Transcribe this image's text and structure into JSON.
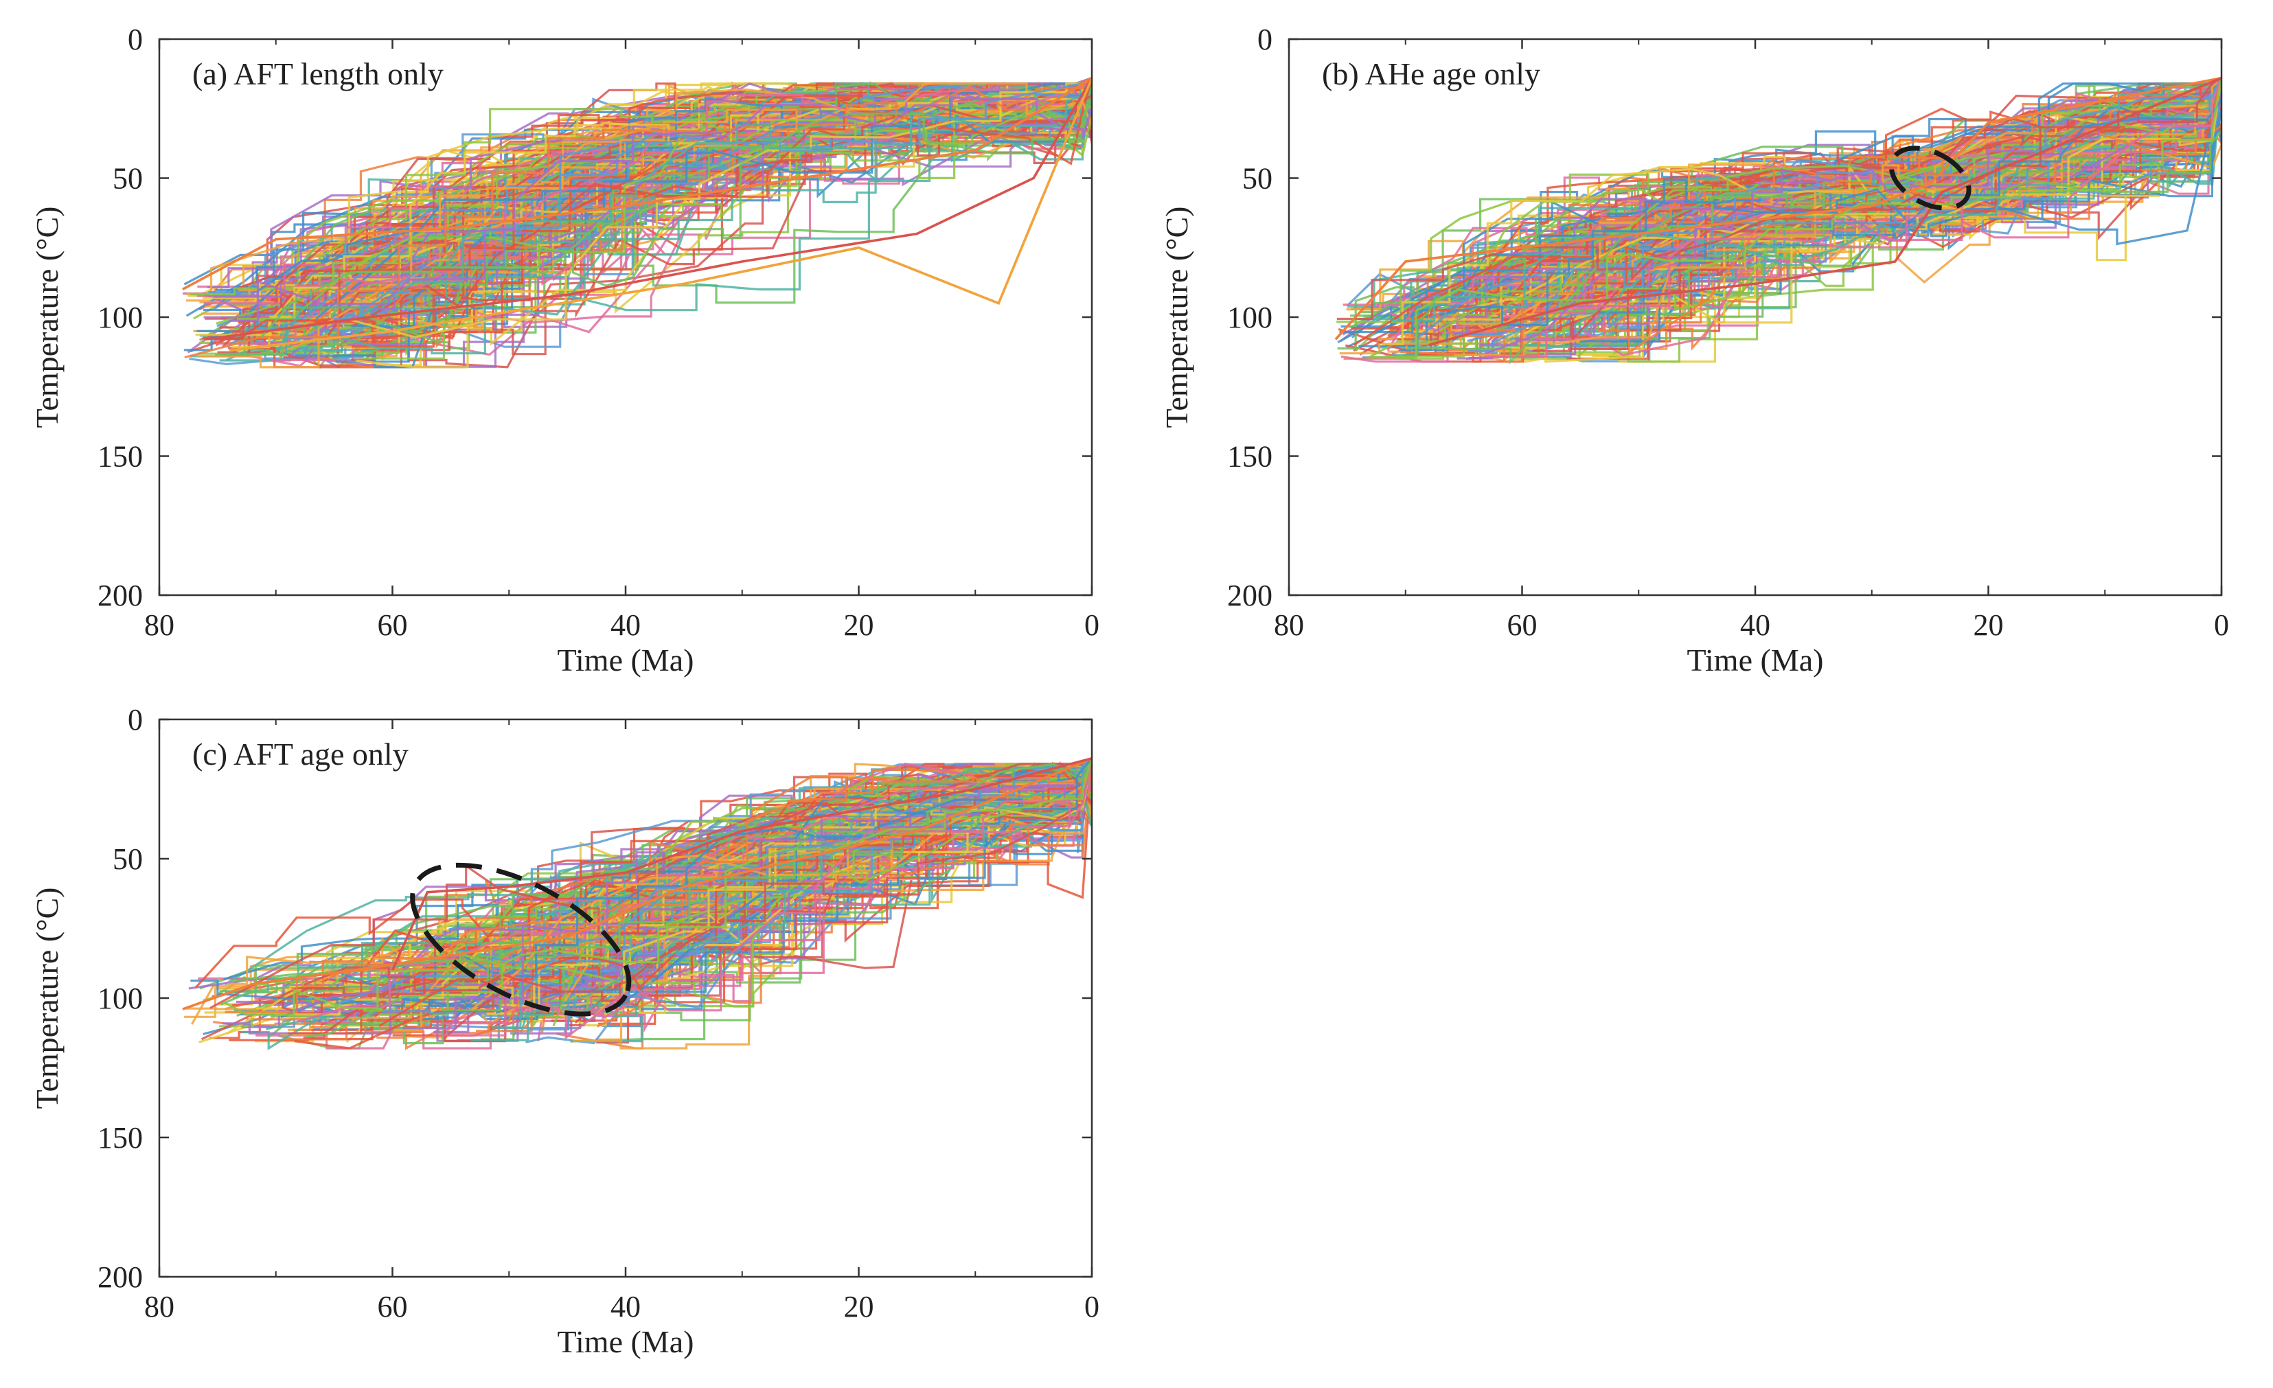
{
  "figure": {
    "background": "#ffffff",
    "axis_color": "#333333",
    "envelope_color": "#1a1a1a",
    "path_palette": [
      "#e8553a",
      "#f2a33a",
      "#e9c93b",
      "#f07f3c",
      "#5b9bd5",
      "#4fb3a3",
      "#6fbf5a",
      "#a86fc9",
      "#d9534f",
      "#3f8fcb",
      "#e06c9f",
      "#8cc63f"
    ]
  },
  "chart_data": [
    {
      "type": "line",
      "title": "(a) AFT length only",
      "xlabel": "Time (Ma)",
      "ylabel": "Temperature (°C)",
      "xlim": [
        80,
        0
      ],
      "ylim": [
        0,
        200
      ],
      "x_ticks": [
        80,
        60,
        40,
        20,
        0
      ],
      "x_tick_labels": [
        "80",
        "60",
        "40",
        "20",
        "0"
      ],
      "y_ticks": [
        0,
        50,
        100,
        150,
        200
      ],
      "y_tick_labels": [
        "0",
        "50",
        "100",
        "150",
        "200"
      ],
      "series_description": "several hundred random-walk time-temperature paths ending at ~14 °C at 0 Ma",
      "path_model": {
        "count": 320,
        "end_temperature": 14,
        "start_time_range": [
          62,
          78
        ],
        "start_temp_range": [
          88,
          116
        ],
        "max_temp": 118,
        "cool_time_range": [
          0.5,
          8
        ],
        "paths": [
          {
            "time": [
              78,
              70,
              55,
              40,
              25,
              10,
              0
            ],
            "temp": [
              90,
              72,
              68,
              60,
              50,
              40,
              14
            ]
          },
          {
            "time": [
              76,
              62,
              45,
              30,
              15,
              5,
              0
            ],
            "temp": [
              108,
              100,
              92,
              80,
              70,
              50,
              14
            ]
          },
          {
            "time": [
              74,
              60,
              50,
              35,
              20,
              8,
              0
            ],
            "temp": [
              112,
              105,
              98,
              88,
              75,
              95,
              14
            ]
          }
        ]
      },
      "envelope": null
    },
    {
      "type": "line",
      "title": "(b) AHe age only",
      "xlabel": "Time (Ma)",
      "ylabel": "Temperature (°C)",
      "xlim": [
        80,
        0
      ],
      "ylim": [
        0,
        200
      ],
      "x_ticks": [
        80,
        60,
        40,
        20,
        0
      ],
      "x_tick_labels": [
        "80",
        "60",
        "40",
        "20",
        "0"
      ],
      "y_ticks": [
        0,
        50,
        100,
        150,
        200
      ],
      "y_tick_labels": [
        "0",
        "50",
        "100",
        "150",
        "200"
      ],
      "series_description": "paths converge near 24 Ma at ~55 °C then cool to ~14-40 °C",
      "path_model": {
        "count": 300,
        "end_temperature": 14,
        "start_time_range": [
          52,
          76
        ],
        "start_temp_range": [
          95,
          115
        ],
        "pinch_time": [
          23,
          29
        ],
        "pinch_temp": [
          45,
          66
        ],
        "max_temp": 116,
        "paths": [
          {
            "time": [
              76,
              70,
              50,
              30,
              25,
              20,
              0
            ],
            "temp": [
              108,
              80,
              70,
              60,
              52,
              30,
              14
            ]
          },
          {
            "time": [
              68,
              55,
              40,
              28,
              24,
              15,
              0
            ],
            "temp": [
              110,
              95,
              88,
              80,
              55,
              40,
              14
            ]
          }
        ]
      },
      "envelope": {
        "center_time": 25,
        "center_temp": 50,
        "rx_time": 2.2,
        "ry_temp": 15,
        "rotation_deg": -62
      }
    },
    {
      "type": "line",
      "title": "(c) AFT age only",
      "xlabel": "Time (Ma)",
      "ylabel": "Temperature (°C)",
      "xlim": [
        80,
        0
      ],
      "ylim": [
        0,
        200
      ],
      "x_ticks": [
        80,
        60,
        40,
        20,
        0
      ],
      "x_tick_labels": [
        "80",
        "60",
        "40",
        "20",
        "0"
      ],
      "y_ticks": [
        0,
        50,
        100,
        150,
        200
      ],
      "y_tick_labels": [
        "0",
        "50",
        "100",
        "150",
        "200"
      ],
      "series_description": "paths pass through ~50 Ma at ~80 °C, then cool to ~14 °C",
      "path_model": {
        "count": 300,
        "end_temperature": 14,
        "start_time_range": [
          42,
          78
        ],
        "start_temp_range": [
          92,
          116
        ],
        "pinch_time": [
          38,
          52
        ],
        "pinch_temp": [
          58,
          100
        ],
        "max_temp": 118,
        "paths": [
          {
            "time": [
              78,
              72,
              60,
              45,
              35,
              15,
              0
            ],
            "temp": [
              104,
              95,
              88,
              78,
              60,
              40,
              14
            ]
          },
          {
            "time": [
              60,
              57,
              50,
              40,
              30,
              10,
              0
            ],
            "temp": [
              90,
              62,
              60,
              55,
              40,
              25,
              14
            ]
          }
        ]
      },
      "envelope": {
        "center_time": 49,
        "center_temp": 79,
        "rx_time": 10.2,
        "ry_temp": 20,
        "rotation_deg": 28
      }
    }
  ]
}
